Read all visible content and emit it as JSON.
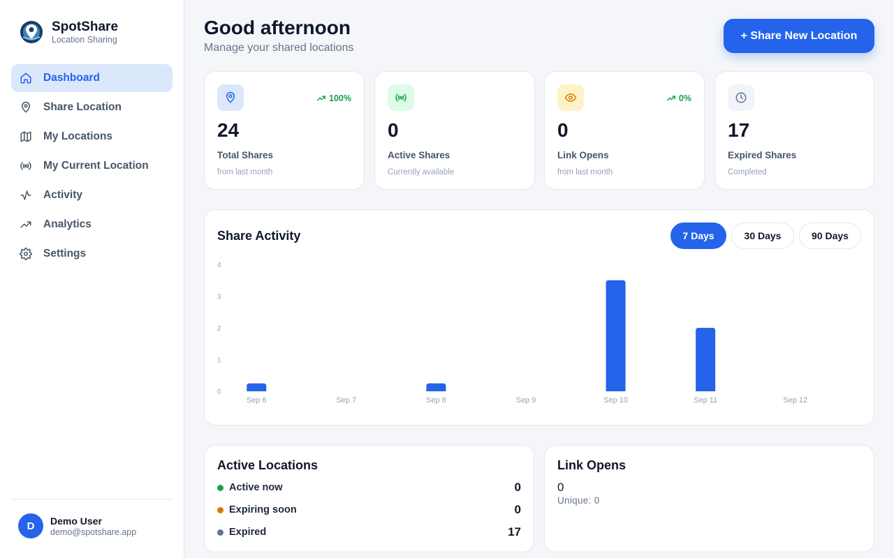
{
  "app": {
    "name": "SpotShare",
    "tagline": "Location Sharing"
  },
  "nav": [
    {
      "label": "Dashboard",
      "icon": "home-icon",
      "active": true
    },
    {
      "label": "Share Location",
      "icon": "map-pin-icon",
      "active": false
    },
    {
      "label": "My Locations",
      "icon": "map-icon",
      "active": false
    },
    {
      "label": "My Current Location",
      "icon": "broadcast-icon",
      "active": false
    },
    {
      "label": "Activity",
      "icon": "activity-icon",
      "active": false
    },
    {
      "label": "Analytics",
      "icon": "trending-up-icon",
      "active": false
    },
    {
      "label": "Settings",
      "icon": "gear-icon",
      "active": false
    }
  ],
  "user": {
    "initial": "D",
    "name": "Demo User",
    "email": "demo@spotshare.app"
  },
  "header": {
    "title": "Good afternoon",
    "subtitle": "Manage your shared locations",
    "cta": "+ Share New Location"
  },
  "stats": [
    {
      "value": "24",
      "label": "Total Shares",
      "sub": "from last month",
      "trend": "100%",
      "icon": "map-pin-icon",
      "icon_bg": "#dbe7fb",
      "icon_color": "#2563eb"
    },
    {
      "value": "0",
      "label": "Active Shares",
      "sub": "Currently available",
      "trend": "",
      "icon": "broadcast-icon",
      "icon_bg": "#dcfce7",
      "icon_color": "#16a34a"
    },
    {
      "value": "0",
      "label": "Link Opens",
      "sub": "from last month",
      "trend": "0%",
      "icon": "eye-icon",
      "icon_bg": "#fef3c7",
      "icon_color": "#d97706"
    },
    {
      "value": "17",
      "label": "Expired Shares",
      "sub": "Completed",
      "trend": "",
      "icon": "clock-icon",
      "icon_bg": "#f1f5f9",
      "icon_color": "#64748b"
    }
  ],
  "activity": {
    "title": "Share Activity",
    "ranges": [
      "7 Days",
      "30 Days",
      "90 Days"
    ],
    "active_range": "7 Days"
  },
  "chart_data": {
    "type": "bar",
    "title": "Share Activity",
    "categories": [
      "Sep 6",
      "Sep 7",
      "Sep 8",
      "Sep 9",
      "Sep 10",
      "Sep 11",
      "Sep 12"
    ],
    "values": [
      0.25,
      0,
      0.25,
      0,
      3.5,
      2,
      0
    ],
    "y_ticks": [
      "0",
      "1",
      "2",
      "3",
      "4"
    ],
    "ylim": [
      0,
      4
    ],
    "bar_color": "#2563eb",
    "grid": false
  },
  "active_locations": {
    "title": "Active Locations",
    "rows": [
      {
        "label": "Active now",
        "count": "0",
        "color": "#16a34a"
      },
      {
        "label": "Expiring soon",
        "count": "0",
        "color": "#d97706"
      },
      {
        "label": "Expired",
        "count": "17",
        "color": "#64748b"
      }
    ]
  },
  "link_opens": {
    "title": "Link Opens",
    "value": "0",
    "unique_label": "Unique:",
    "unique_value": "0"
  }
}
